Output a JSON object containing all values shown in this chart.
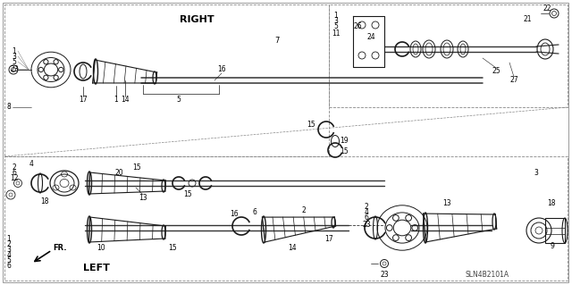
{
  "bg_color": "#ffffff",
  "line_color": "#1a1a1a",
  "dash_color": "#888888",
  "text_color": "#000000",
  "right_label": "RIGHT",
  "left_label": "LEFT",
  "fr_label": "FR.",
  "diagram_code": "SLN4B2101A",
  "shaft_color": "#333333",
  "part_color": "#222222"
}
